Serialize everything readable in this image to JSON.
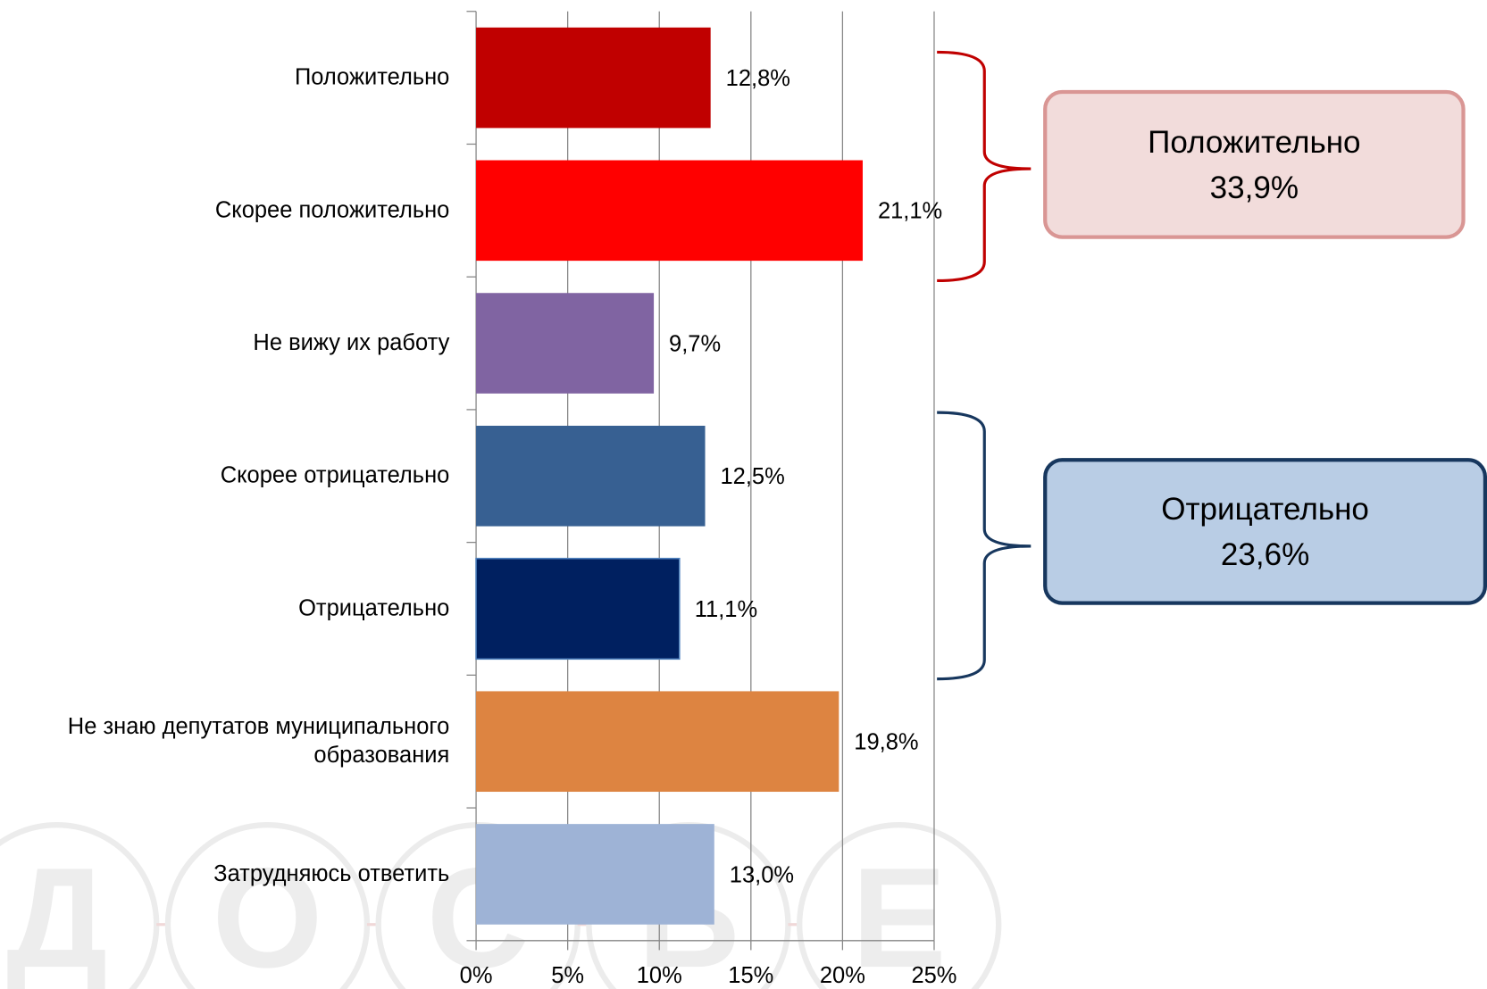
{
  "chart_data": {
    "type": "bar",
    "orientation": "horizontal",
    "categories": [
      "Положительно",
      "Скорее положительно",
      "Не вижу их работу",
      "Скорее отрицательно",
      "Отрицательно",
      "Не знаю депутатов муниципального образования",
      "Затрудняюсь ответить"
    ],
    "values": [
      12.8,
      21.1,
      9.7,
      12.5,
      11.1,
      19.8,
      13.0
    ],
    "value_labels": [
      "12,8%",
      "21,1%",
      "9,7%",
      "12,5%",
      "11,1%",
      "19,8%",
      "13,0%"
    ],
    "colors": [
      "#c00000",
      "#ff0000",
      "#8064a2",
      "#376092",
      "#002060",
      "#dd8441",
      "#9eb3d6"
    ],
    "xlim": [
      0,
      25
    ],
    "xticks": [
      {
        "value": 0,
        "label": "0%"
      },
      {
        "value": 5,
        "label": "5%"
      },
      {
        "value": 10,
        "label": "10%"
      },
      {
        "value": 15,
        "label": "15%"
      },
      {
        "value": 20,
        "label": "20%"
      },
      {
        "value": 25,
        "label": "25%"
      }
    ],
    "grid": true,
    "annotations": [
      {
        "label": "Положительно",
        "value_label": "33,9%",
        "color": "#c00000",
        "box_fill": "#f2dcdb",
        "box_stroke": "#d99694"
      },
      {
        "label": "Отрицательно",
        "value_label": "23,6%",
        "color": "#17375e",
        "box_fill": "#b9cde5",
        "box_stroke": "#17375e"
      }
    ],
    "watermark": [
      "Д",
      "О",
      "С",
      "Ь",
      "Е"
    ]
  }
}
